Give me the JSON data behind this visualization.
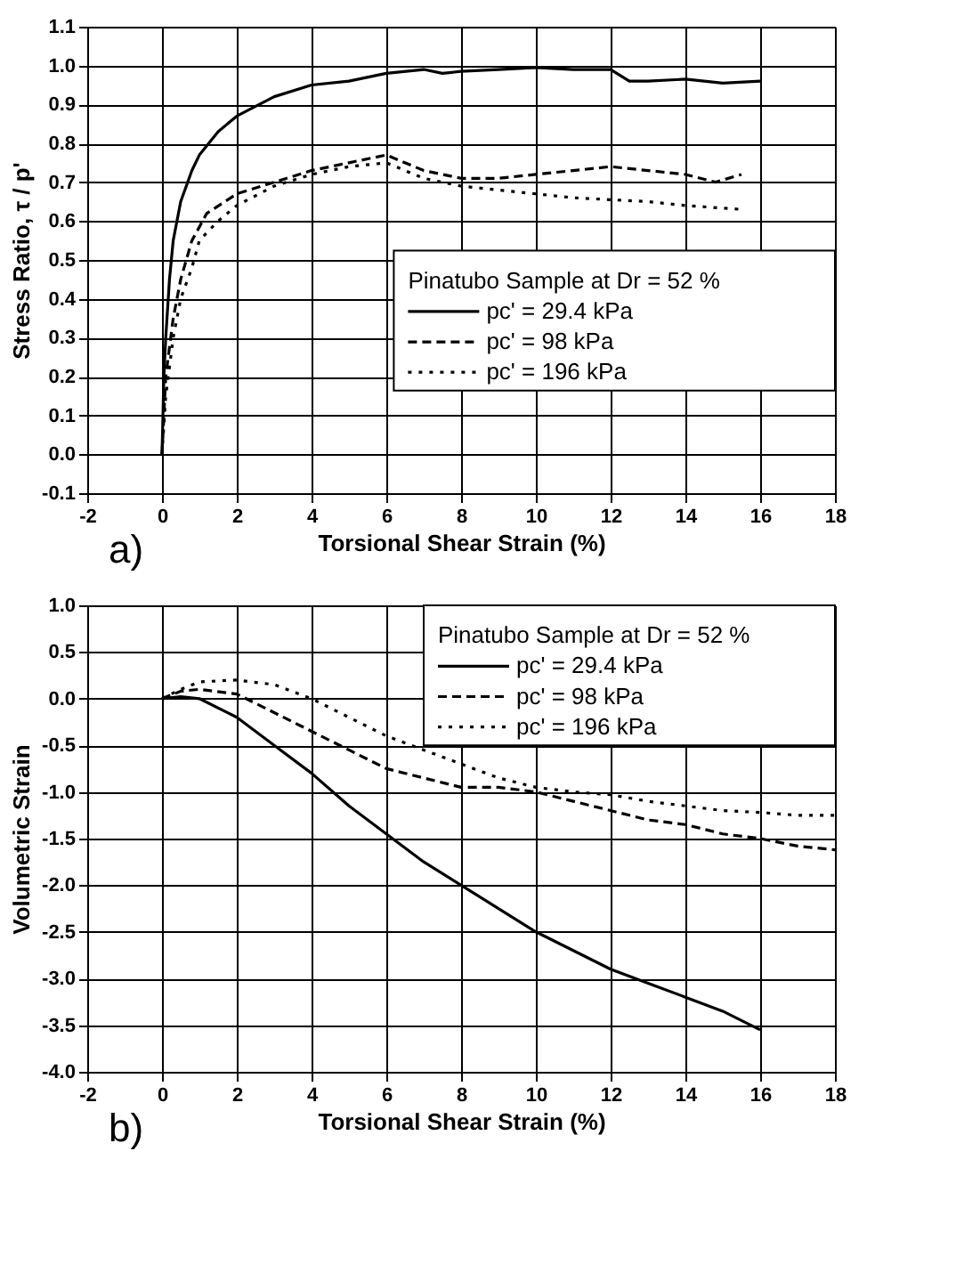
{
  "chart_data": [
    {
      "type": "line",
      "xlabel": "Torsional Shear Strain (%)",
      "ylabel": "Stress Ratio, τ / p'",
      "legend_title": "Pinatubo Sample at Dr = 52 %",
      "annotations": [
        "a)"
      ],
      "xlim": [
        -2,
        18
      ],
      "xticks": [
        -2,
        0,
        2,
        4,
        6,
        8,
        10,
        12,
        14,
        16,
        18
      ],
      "ylim": [
        -0.1,
        1.1
      ],
      "yticks": [
        {
          "value": -0.1,
          "label": "-0.1"
        },
        {
          "value": 0,
          "label": "0.0"
        },
        0.1,
        0.2,
        0.3,
        0.4,
        0.5,
        0.6,
        0.7,
        0.8,
        0.9,
        {
          "value": 1,
          "label": "1.0"
        },
        1.1
      ],
      "grid": true,
      "legend": "right",
      "marker": "none",
      "series": [
        {
          "name": "pc' = 29.4 kPa",
          "color": "#000000",
          "line_style": "solid",
          "x": [
            0,
            0.05,
            0.1,
            0.2,
            0.3,
            0.5,
            0.8,
            1,
            1.5,
            2,
            3,
            4,
            5,
            6,
            7,
            7.5,
            8,
            9,
            10,
            11,
            12,
            12.5,
            13,
            14,
            15,
            16
          ],
          "values": [
            0.0,
            0.2,
            0.3,
            0.45,
            0.55,
            0.65,
            0.73,
            0.77,
            0.83,
            0.87,
            0.92,
            0.95,
            0.96,
            0.98,
            0.99,
            0.98,
            0.985,
            0.99,
            0.995,
            0.99,
            0.99,
            0.96,
            0.96,
            0.965,
            0.955,
            0.96
          ]
        },
        {
          "name": "pc' = 98 kPa",
          "color": "#000000",
          "line_style": "dashed",
          "x": [
            0,
            0.1,
            0.3,
            0.5,
            0.8,
            1.2,
            2,
            3,
            4,
            5,
            6,
            7,
            8,
            9,
            10,
            11,
            12,
            13,
            14,
            14.8,
            15.5
          ],
          "values": [
            0.0,
            0.2,
            0.35,
            0.45,
            0.55,
            0.62,
            0.67,
            0.7,
            0.73,
            0.75,
            0.77,
            0.73,
            0.71,
            0.71,
            0.72,
            0.73,
            0.74,
            0.73,
            0.72,
            0.7,
            0.72
          ]
        },
        {
          "name": "pc' = 196 kPa",
          "color": "#000000",
          "line_style": "dotted",
          "x": [
            0,
            0.1,
            0.3,
            0.5,
            0.8,
            1,
            1.5,
            2,
            3,
            4,
            5,
            6,
            7,
            8,
            9,
            10,
            11,
            12,
            13,
            14,
            15.5
          ],
          "values": [
            0.0,
            0.15,
            0.3,
            0.4,
            0.48,
            0.55,
            0.6,
            0.64,
            0.69,
            0.72,
            0.74,
            0.75,
            0.71,
            0.69,
            0.68,
            0.67,
            0.66,
            0.655,
            0.65,
            0.64,
            0.63
          ]
        }
      ]
    },
    {
      "type": "line",
      "xlabel": "Torsional Shear Strain (%)",
      "ylabel": "Volumetric Strain",
      "legend_title": "Pinatubo Sample at Dr = 52 %",
      "annotations": [
        "b)"
      ],
      "xlim": [
        -2,
        18
      ],
      "xticks": [
        -2,
        0,
        2,
        4,
        6,
        8,
        10,
        12,
        14,
        16,
        18
      ],
      "ylim": [
        -4.0,
        1.0
      ],
      "yticks": [
        {
          "value": -4,
          "label": "-4.0"
        },
        {
          "value": -3.5,
          "label": "-3.5"
        },
        {
          "value": -3,
          "label": "-3.0"
        },
        {
          "value": -2.5,
          "label": "-2.5"
        },
        {
          "value": -2,
          "label": "-2.0"
        },
        {
          "value": -1.5,
          "label": "-1.5"
        },
        {
          "value": -1,
          "label": "-1.0"
        },
        {
          "value": -0.5,
          "label": "-0.5"
        },
        {
          "value": 0,
          "label": "0.0"
        },
        0.5,
        {
          "value": 1,
          "label": "1.0"
        }
      ],
      "grid": true,
      "legend": "top right",
      "marker": "none",
      "series": [
        {
          "name": "pc' = 29.4 kPa",
          "color": "#000000",
          "line_style": "solid",
          "x": [
            0,
            0.5,
            1,
            2,
            3,
            4,
            5,
            6,
            7,
            8,
            9,
            10,
            11,
            12,
            13,
            14,
            15,
            16
          ],
          "values": [
            0.0,
            0.02,
            0.0,
            -0.2,
            -0.5,
            -0.8,
            -1.15,
            -1.45,
            -1.75,
            -2.0,
            -2.25,
            -2.5,
            -2.7,
            -2.9,
            -3.05,
            -3.2,
            -3.35,
            -3.55
          ]
        },
        {
          "name": "pc' = 98 kPa",
          "color": "#000000",
          "line_style": "dashed",
          "x": [
            0,
            0.5,
            1,
            2,
            3,
            4,
            5,
            6,
            7,
            8,
            9,
            10,
            11,
            12,
            13,
            14,
            15,
            16,
            17,
            18
          ],
          "values": [
            0.0,
            0.08,
            0.1,
            0.05,
            -0.15,
            -0.35,
            -0.55,
            -0.75,
            -0.85,
            -0.95,
            -0.95,
            -1.0,
            -1.1,
            -1.2,
            -1.3,
            -1.35,
            -1.45,
            -1.5,
            -1.58,
            -1.62
          ]
        },
        {
          "name": "pc' = 196 kPa",
          "color": "#000000",
          "line_style": "dotted",
          "x": [
            0,
            0.5,
            1,
            2,
            3,
            4,
            5,
            6,
            7,
            8,
            9,
            10,
            11,
            12,
            13,
            14,
            15,
            16,
            17,
            18
          ],
          "values": [
            0.0,
            0.1,
            0.18,
            0.2,
            0.15,
            0.0,
            -0.2,
            -0.4,
            -0.55,
            -0.7,
            -0.85,
            -0.95,
            -1.0,
            -1.03,
            -1.1,
            -1.15,
            -1.2,
            -1.22,
            -1.25,
            -1.25
          ]
        }
      ]
    }
  ]
}
